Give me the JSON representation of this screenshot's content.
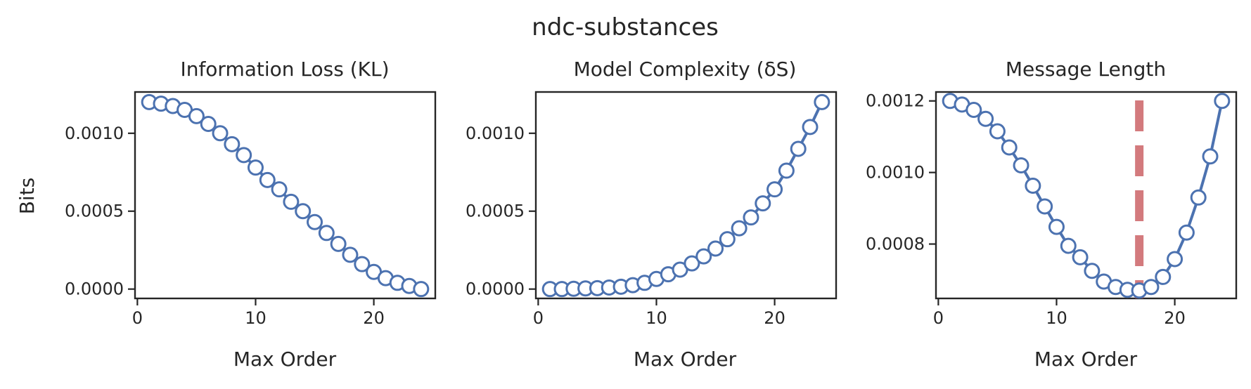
{
  "figure": {
    "title": "ndc-substances"
  },
  "chart_data": [
    {
      "type": "line",
      "title": "Information Loss (KL)",
      "xlabel": "Max Order",
      "ylabel": "Bits",
      "xlim": [
        -0.2,
        25.2
      ],
      "ylim": [
        -6e-05,
        0.001265
      ],
      "xticks": [
        0,
        10,
        20
      ],
      "xtick_labels": [
        "0",
        "10",
        "20"
      ],
      "yticks": [
        0.0,
        0.0005,
        0.001
      ],
      "ytick_labels": [
        "0.0000",
        "0.0005",
        "0.0010"
      ],
      "x": [
        1,
        2,
        3,
        4,
        5,
        6,
        7,
        8,
        9,
        10,
        11,
        12,
        13,
        14,
        15,
        16,
        17,
        18,
        19,
        20,
        21,
        22,
        23,
        24
      ],
      "series": [
        {
          "values": [
            0.0012,
            0.00119,
            0.001175,
            0.00115,
            0.00111,
            0.00106,
            0.001,
            0.00093,
            0.00086,
            0.00078,
            0.0007,
            0.00064,
            0.00056,
            0.0005,
            0.00043,
            0.00036,
            0.00029,
            0.00022,
            0.00016,
            0.00011,
            7e-05,
            4e-05,
            2e-05,
            0.0
          ]
        }
      ]
    },
    {
      "type": "line",
      "title": "Model Complexity (δS)",
      "xlabel": "Max Order",
      "ylabel": "",
      "xlim": [
        -0.2,
        25.2
      ],
      "ylim": [
        -6e-05,
        0.001265
      ],
      "xticks": [
        0,
        10,
        20
      ],
      "xtick_labels": [
        "0",
        "10",
        "20"
      ],
      "yticks": [
        0.0,
        0.0005,
        0.001
      ],
      "ytick_labels": [
        "0.0000",
        "0.0005",
        "0.0010"
      ],
      "x": [
        1,
        2,
        3,
        4,
        5,
        6,
        7,
        8,
        9,
        10,
        11,
        12,
        13,
        14,
        15,
        16,
        17,
        18,
        19,
        20,
        21,
        22,
        23,
        24
      ],
      "series": [
        {
          "values": [
            0.0,
            0.0,
            2e-06,
            4e-06,
            6e-06,
            1e-05,
            1.5e-05,
            2.5e-05,
            4e-05,
            6.5e-05,
            9.5e-05,
            0.000125,
            0.000165,
            0.00021,
            0.00026,
            0.00032,
            0.00039,
            0.00046,
            0.00055,
            0.00064,
            0.00076,
            0.0009,
            0.00104,
            0.0012
          ]
        }
      ]
    },
    {
      "type": "line",
      "title": "Message Length",
      "xlabel": "Max Order",
      "ylabel": "",
      "xlim": [
        -0.2,
        25.2
      ],
      "ylim": [
        0.000648,
        0.001225
      ],
      "xticks": [
        0,
        10,
        20
      ],
      "xtick_labels": [
        "0",
        "10",
        "20"
      ],
      "yticks": [
        0.0008,
        0.001,
        0.0012
      ],
      "ytick_labels": [
        "0.0008",
        "0.0010",
        "0.0012"
      ],
      "x": [
        1,
        2,
        3,
        4,
        5,
        6,
        7,
        8,
        9,
        10,
        11,
        12,
        13,
        14,
        15,
        16,
        17,
        18,
        19,
        20,
        21,
        22,
        23,
        24
      ],
      "series": [
        {
          "values": [
            0.0012,
            0.00119,
            0.001175,
            0.00115,
            0.001115,
            0.00107,
            0.00102,
            0.000963,
            0.000905,
            0.000848,
            0.000795,
            0.000763,
            0.000725,
            0.000695,
            0.00068,
            0.000672,
            0.00067,
            0.00068,
            0.000708,
            0.000758,
            0.000832,
            0.00093,
            0.001045,
            0.0012
          ]
        }
      ],
      "vline": {
        "x": 17,
        "color": "#c44e52"
      }
    }
  ]
}
